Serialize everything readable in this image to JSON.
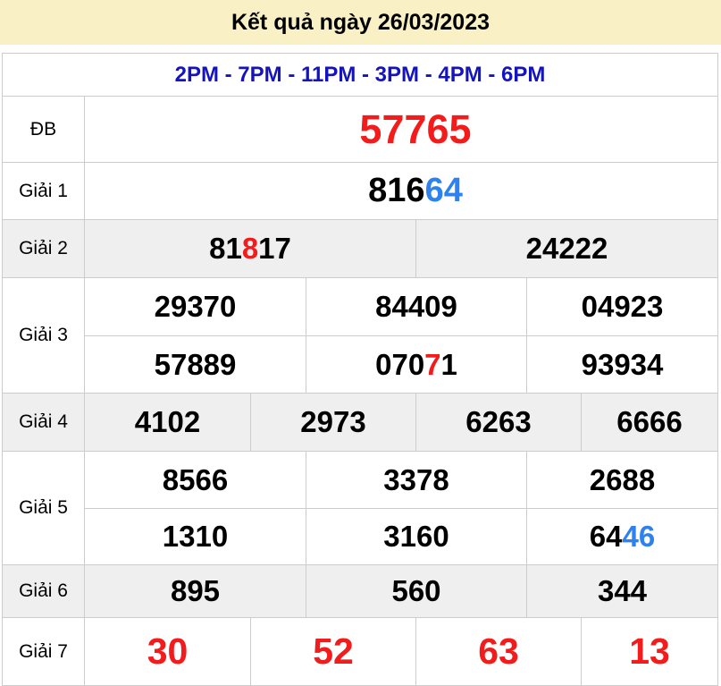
{
  "header": {
    "title": "Kết quả ngày 26/03/2023"
  },
  "schedule": {
    "text": "2PM - 7PM - 11PM - 3PM - 4PM - 6PM"
  },
  "colors": {
    "red": "#f21c1c",
    "blue": "#2d82f0",
    "navy": "#1414be",
    "header_bg": "#faf0c6",
    "shaded_row_bg": "#efefef",
    "border": "#cccccc",
    "text": "#000000"
  },
  "prizes": [
    {
      "kind": "db",
      "label": "ĐB",
      "shaded": false,
      "rows": [
        [
          [
            {
              "t": "57765",
              "c": "red"
            }
          ]
        ]
      ]
    },
    {
      "kind": "g1",
      "label": "Giải 1",
      "shaded": false,
      "rows": [
        [
          [
            {
              "t": "816"
            },
            {
              "t": "64",
              "c": "blue"
            }
          ]
        ]
      ]
    },
    {
      "kind": "g2",
      "label": "Giải 2",
      "shaded": true,
      "rows": [
        [
          [
            {
              "t": "81"
            },
            {
              "t": "8",
              "c": "red"
            },
            {
              "t": "17"
            }
          ],
          [
            {
              "t": "24222"
            }
          ]
        ]
      ]
    },
    {
      "kind": "g3",
      "label": "Giải 3",
      "shaded": false,
      "rows": [
        [
          [
            {
              "t": "29370"
            }
          ],
          [
            {
              "t": "84409"
            }
          ],
          [
            {
              "t": "04923"
            }
          ]
        ],
        [
          [
            {
              "t": "57889"
            }
          ],
          [
            {
              "t": "070"
            },
            {
              "t": "7",
              "c": "red"
            },
            {
              "t": "1"
            }
          ],
          [
            {
              "t": "93934"
            }
          ]
        ]
      ]
    },
    {
      "kind": "g4",
      "label": "Giải 4",
      "shaded": true,
      "rows": [
        [
          [
            {
              "t": "4102"
            }
          ],
          [
            {
              "t": "2973"
            }
          ],
          [
            {
              "t": "6263"
            }
          ],
          [
            {
              "t": "6666"
            }
          ]
        ]
      ]
    },
    {
      "kind": "g5",
      "label": "Giải 5",
      "shaded": false,
      "rows": [
        [
          [
            {
              "t": "8566"
            }
          ],
          [
            {
              "t": "3378"
            }
          ],
          [
            {
              "t": "2688"
            }
          ]
        ],
        [
          [
            {
              "t": "1310"
            }
          ],
          [
            {
              "t": "3160"
            }
          ],
          [
            {
              "t": "64"
            },
            {
              "t": "46",
              "c": "blue"
            }
          ]
        ]
      ]
    },
    {
      "kind": "g6",
      "label": "Giải 6",
      "shaded": true,
      "rows": [
        [
          [
            {
              "t": "895"
            }
          ],
          [
            {
              "t": "560"
            }
          ],
          [
            {
              "t": "344"
            }
          ]
        ]
      ]
    },
    {
      "kind": "g7",
      "label": "Giải 7",
      "shaded": false,
      "rows": [
        [
          [
            {
              "t": "30",
              "c": "red"
            }
          ],
          [
            {
              "t": "52",
              "c": "red"
            }
          ],
          [
            {
              "t": "63",
              "c": "red"
            }
          ],
          [
            {
              "t": "13",
              "c": "red"
            }
          ]
        ]
      ]
    }
  ]
}
